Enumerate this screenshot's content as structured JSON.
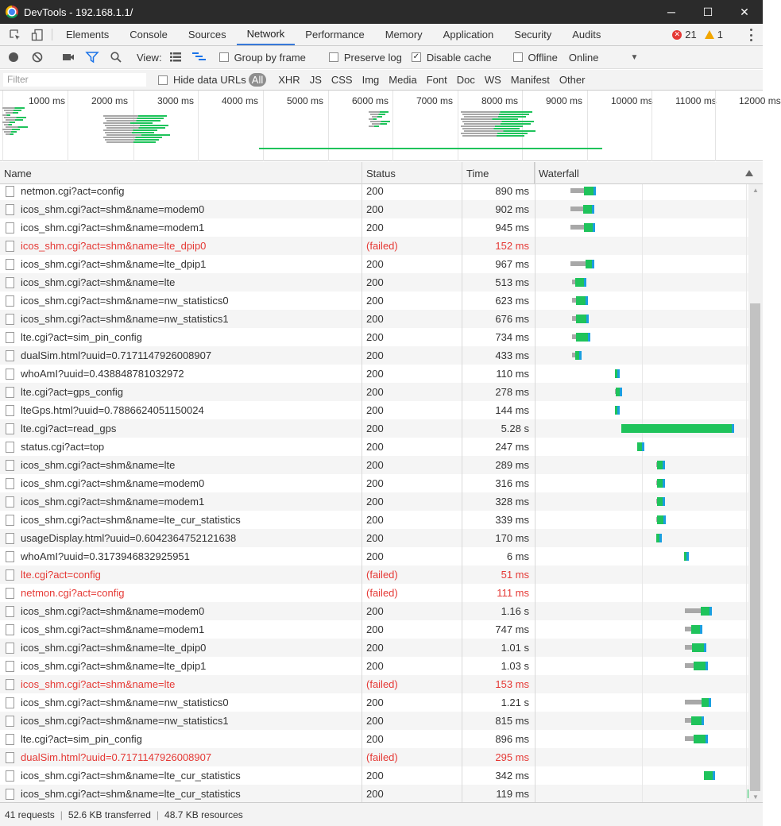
{
  "window": {
    "title": "DevTools - 192.168.1.1/",
    "minimize": "─",
    "maximize": "☐",
    "close": "✕"
  },
  "tabs": [
    {
      "label": "Elements"
    },
    {
      "label": "Console"
    },
    {
      "label": "Sources"
    },
    {
      "label": "Network",
      "active": true
    },
    {
      "label": "Performance"
    },
    {
      "label": "Memory"
    },
    {
      "label": "Application"
    },
    {
      "label": "Security"
    },
    {
      "label": "Audits"
    }
  ],
  "issues": {
    "errors": "21",
    "warnings": "1"
  },
  "toolbar": {
    "view_label": "View:",
    "group_by_frame": {
      "label": "Group by frame",
      "checked": false
    },
    "preserve_log": {
      "label": "Preserve log",
      "checked": false
    },
    "disable_cache": {
      "label": "Disable cache",
      "checked": true
    },
    "offline": {
      "label": "Offline",
      "checked": false
    },
    "throttle": "Online"
  },
  "filterbar": {
    "placeholder": "Filter",
    "hide_data_urls": {
      "label": "Hide data URLs",
      "checked": false
    },
    "types": [
      "All",
      "XHR",
      "JS",
      "CSS",
      "Img",
      "Media",
      "Font",
      "Doc",
      "WS",
      "Manifest",
      "Other"
    ],
    "active_type": "All"
  },
  "overview": {
    "ticks": [
      "1000 ms",
      "2000 ms",
      "3000 ms",
      "4000 ms",
      "5000 ms",
      "6000 ms",
      "7000 ms",
      "8000 ms",
      "9000 ms",
      "10000 ms",
      "11000 ms",
      "12000 ms"
    ]
  },
  "columns": {
    "name": "Name",
    "status": "Status",
    "time": "Time",
    "waterfall": "Waterfall"
  },
  "requests": [
    {
      "name": "netmon.cgi?act=config",
      "status": "200",
      "time": "890 ms",
      "failed": false,
      "wf": [
        0.16,
        0.065,
        0.26,
        0.045
      ]
    },
    {
      "name": "icos_shm.cgi?act=shm&name=modem0",
      "status": "200",
      "time": "902 ms",
      "failed": false,
      "wf": [
        0.16,
        0.06,
        0.25,
        0.04
      ]
    },
    {
      "name": "icos_shm.cgi?act=shm&name=modem1",
      "status": "200",
      "time": "945 ms",
      "failed": false,
      "wf": [
        0.16,
        0.065,
        0.26,
        0.04
      ]
    },
    {
      "name": "icos_shm.cgi?act=shm&name=lte_dpip0",
      "status": "(failed)",
      "time": "152 ms",
      "failed": true,
      "wf": null
    },
    {
      "name": "icos_shm.cgi?act=shm&name=lte_dpip1",
      "status": "200",
      "time": "967 ms",
      "failed": false,
      "wf": [
        0.16,
        0.07,
        0.265,
        0.03
      ]
    },
    {
      "name": "icos_shm.cgi?act=shm&name=lte",
      "status": "200",
      "time": "513 ms",
      "failed": false,
      "wf": [
        0.17,
        0.015,
        0.185,
        0.04
      ]
    },
    {
      "name": "icos_shm.cgi?act=shm&name=nw_statistics0",
      "status": "200",
      "time": "623 ms",
      "failed": false,
      "wf": [
        0.17,
        0.02,
        0.19,
        0.045
      ]
    },
    {
      "name": "icos_shm.cgi?act=shm&name=nw_statistics1",
      "status": "200",
      "time": "676 ms",
      "failed": false,
      "wf": [
        0.17,
        0.02,
        0.19,
        0.05
      ]
    },
    {
      "name": "lte.cgi?act=sim_pin_config",
      "status": "200",
      "time": "734 ms",
      "failed": false,
      "wf": [
        0.17,
        0.02,
        0.19,
        0.055
      ]
    },
    {
      "name": "dualSim.html?uuid=0.7171147926008907",
      "status": "200",
      "time": "433 ms",
      "failed": false,
      "wf": [
        0.17,
        0.015,
        0.185,
        0.02
      ]
    },
    {
      "name": "whoAmI?uuid=0.438848781032972",
      "status": "200",
      "time": "110 ms",
      "failed": false,
      "wf": [
        0.37,
        0.0,
        0.37,
        0.012
      ]
    },
    {
      "name": "lte.cgi?act=gps_config",
      "status": "200",
      "time": "278 ms",
      "failed": false,
      "wf": [
        0.37,
        0.005,
        0.375,
        0.02
      ]
    },
    {
      "name": "lteGps.html?uuid=0.7886624051150024",
      "status": "200",
      "time": "144 ms",
      "failed": false,
      "wf": [
        0.37,
        0.0,
        0.37,
        0.012
      ]
    },
    {
      "name": "lte.cgi?act=read_gps",
      "status": "200",
      "time": "5.28 s",
      "failed": false,
      "wf": [
        0.4,
        0.0,
        0.4,
        0.52
      ]
    },
    {
      "name": "status.cgi?act=top",
      "status": "200",
      "time": "247 ms",
      "failed": false,
      "wf": [
        0.475,
        0.0,
        0.475,
        0.022
      ]
    },
    {
      "name": "icos_shm.cgi?act=shm&name=lte",
      "status": "200",
      "time": "289 ms",
      "failed": false,
      "wf": [
        0.565,
        0.005,
        0.57,
        0.025
      ]
    },
    {
      "name": "icos_shm.cgi?act=shm&name=modem0",
      "status": "200",
      "time": "316 ms",
      "failed": false,
      "wf": [
        0.565,
        0.005,
        0.57,
        0.027
      ]
    },
    {
      "name": "icos_shm.cgi?act=shm&name=modem1",
      "status": "200",
      "time": "328 ms",
      "failed": false,
      "wf": [
        0.565,
        0.005,
        0.57,
        0.028
      ]
    },
    {
      "name": "icos_shm.cgi?act=shm&name=lte_cur_statistics",
      "status": "200",
      "time": "339 ms",
      "failed": false,
      "wf": [
        0.565,
        0.005,
        0.57,
        0.03
      ]
    },
    {
      "name": "usageDisplay.html?uuid=0.6042364752121638",
      "status": "200",
      "time": "170 ms",
      "failed": false,
      "wf": [
        0.565,
        0.0,
        0.565,
        0.015
      ]
    },
    {
      "name": "whoAmI?uuid=0.3173946832925951",
      "status": "200",
      "time": "6 ms",
      "failed": false,
      "wf": [
        0.695,
        0.0,
        0.695,
        0.006
      ]
    },
    {
      "name": "lte.cgi?act=config",
      "status": "(failed)",
      "time": "51 ms",
      "failed": true,
      "wf": null
    },
    {
      "name": "netmon.cgi?act=config",
      "status": "(failed)",
      "time": "111 ms",
      "failed": true,
      "wf": null
    },
    {
      "name": "icos_shm.cgi?act=shm&name=modem0",
      "status": "200",
      "time": "1.16 s",
      "failed": false,
      "wf": [
        0.7,
        0.075,
        0.78,
        0.04
      ]
    },
    {
      "name": "icos_shm.cgi?act=shm&name=modem1",
      "status": "200",
      "time": "747 ms",
      "failed": false,
      "wf": [
        0.7,
        0.03,
        0.735,
        0.04
      ]
    },
    {
      "name": "icos_shm.cgi?act=shm&name=lte_dpip0",
      "status": "200",
      "time": "1.01 s",
      "failed": false,
      "wf": [
        0.7,
        0.035,
        0.74,
        0.055
      ]
    },
    {
      "name": "icos_shm.cgi?act=shm&name=lte_dpip1",
      "status": "200",
      "time": "1.03 s",
      "failed": false,
      "wf": [
        0.7,
        0.04,
        0.745,
        0.055
      ]
    },
    {
      "name": "icos_shm.cgi?act=shm&name=lte",
      "status": "(failed)",
      "time": "153 ms",
      "failed": true,
      "wf": null
    },
    {
      "name": "icos_shm.cgi?act=shm&name=nw_statistics0",
      "status": "200",
      "time": "1.21 s",
      "failed": false,
      "wf": [
        0.7,
        0.08,
        0.785,
        0.035
      ]
    },
    {
      "name": "icos_shm.cgi?act=shm&name=nw_statistics1",
      "status": "200",
      "time": "815 ms",
      "failed": false,
      "wf": [
        0.7,
        0.03,
        0.735,
        0.05
      ]
    },
    {
      "name": "lte.cgi?act=sim_pin_config",
      "status": "200",
      "time": "896 ms",
      "failed": false,
      "wf": [
        0.7,
        0.04,
        0.745,
        0.055
      ]
    },
    {
      "name": "dualSim.html?uuid=0.7171147926008907",
      "status": "(failed)",
      "time": "295 ms",
      "failed": true,
      "wf": null
    },
    {
      "name": "icos_shm.cgi?act=shm&name=lte_cur_statistics",
      "status": "200",
      "time": "342 ms",
      "failed": false,
      "wf": [
        0.79,
        0.0,
        0.79,
        0.04
      ]
    },
    {
      "name": "icos_shm.cgi?act=shm&name=lte_cur_statistics",
      "status": "200",
      "time": "119 ms",
      "failed": false,
      "wf": [
        0.995,
        0.0,
        0.995,
        0.01
      ]
    }
  ],
  "status_bar": {
    "requests": "41 requests",
    "transferred": "52.6 KB transferred",
    "resources": "48.7 KB resources"
  },
  "colors": {
    "waiting": "#a8a8a8",
    "receiving": "#1fc35b",
    "download": "#1a9fe0",
    "failed": "#e53935",
    "accent": "#3879d9"
  }
}
